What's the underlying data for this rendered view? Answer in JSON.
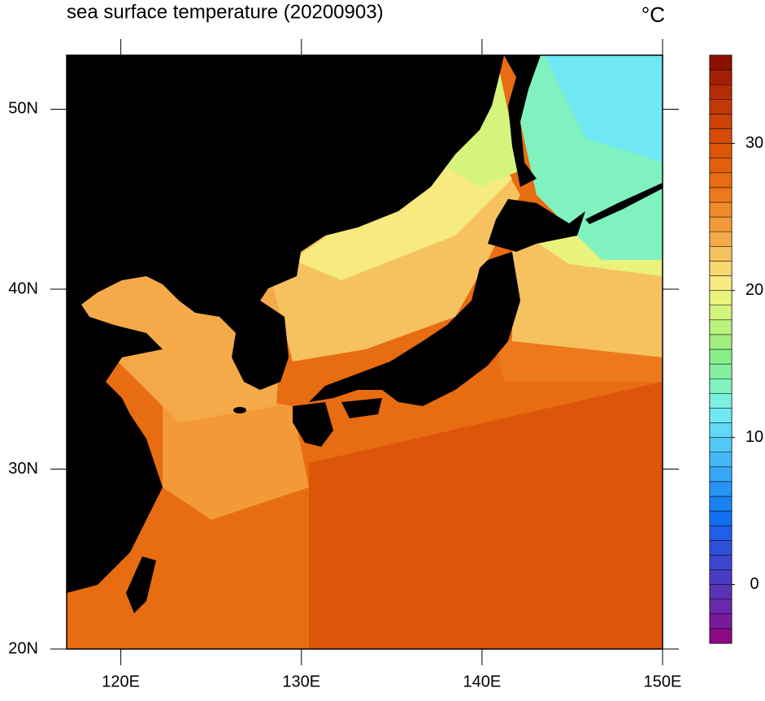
{
  "chart_data": {
    "type": "contour",
    "title": "sea surface temperature (20200903)",
    "unit": "°C",
    "xlim": [
      117,
      150
    ],
    "ylim": [
      20,
      53
    ],
    "xticks": [
      {
        "value": 120,
        "label": "120E"
      },
      {
        "value": 130,
        "label": "130E"
      },
      {
        "value": 140,
        "label": "140E"
      },
      {
        "value": 150,
        "label": "150E"
      }
    ],
    "yticks": [
      {
        "value": 20,
        "label": "20N"
      },
      {
        "value": 30,
        "label": "30N"
      },
      {
        "value": 40,
        "label": "40N"
      },
      {
        "value": 50,
        "label": "50N"
      }
    ],
    "colorbar": {
      "lim": [
        -4,
        36
      ],
      "ticks": [
        0,
        10,
        20,
        30
      ],
      "colors": [
        "#8b0a84",
        "#7a1a9a",
        "#6a28aa",
        "#5a32b6",
        "#4a3cc2",
        "#3c46ce",
        "#2e50da",
        "#2060e8",
        "#1070f0",
        "#1a82f2",
        "#2894f4",
        "#38a6f6",
        "#44b8f6",
        "#52c8f6",
        "#60d8f6",
        "#70e8f4",
        "#7cf0e0",
        "#80f2c0",
        "#84f0a0",
        "#88ee88",
        "#a0f080",
        "#baf27c",
        "#d4f47c",
        "#eaf27e",
        "#f6ea80",
        "#f8d870",
        "#f6c260",
        "#f4aa48",
        "#f29a38",
        "#f08a28",
        "#ec7a1c",
        "#e86c12",
        "#e2600c",
        "#dc560a",
        "#d44c08",
        "#cc4206",
        "#c23806",
        "#b42c04",
        "#a42004",
        "#8c1002"
      ]
    }
  }
}
